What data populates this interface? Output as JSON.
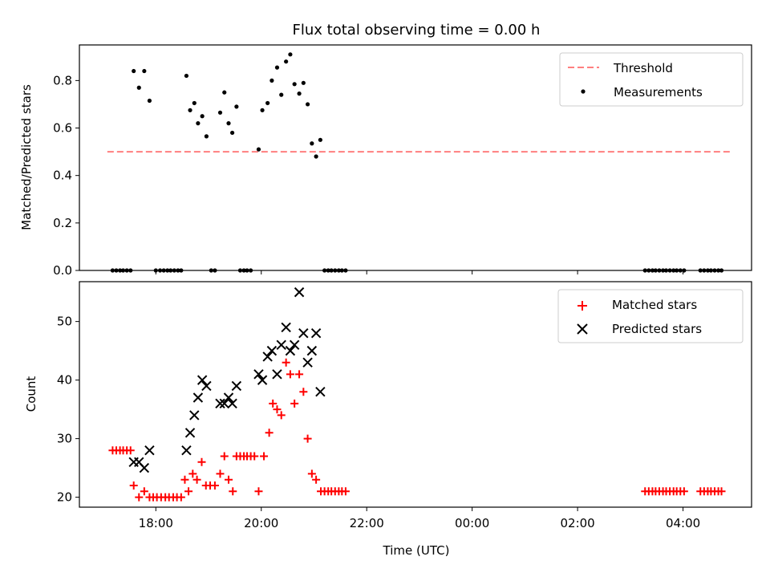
{
  "title": "Flux total observing time = 0.00 h",
  "xlabel": "Time (UTC)",
  "colors": {
    "threshold": "#ff7f7f",
    "measurements": "#000000",
    "matched": "#ff0000",
    "predicted": "#000000"
  },
  "chart_data": [
    {
      "type": "scatter",
      "panel": "top",
      "ylabel": "Matched/Predicted stars",
      "ylim": [
        0,
        0.95
      ],
      "yticks": [
        0.0,
        0.2,
        0.4,
        0.6,
        0.8
      ],
      "ytick_labels": [
        "0.0",
        "0.2",
        "0.4",
        "0.6",
        "0.8"
      ],
      "x_unit": "hours since 00:00 UTC on first day",
      "xlim": [
        16.55,
        29.3
      ],
      "xticks": [
        18,
        20,
        22,
        24,
        26,
        28
      ],
      "xtick_labels": [
        "",
        "",
        "",
        "",
        "",
        ""
      ],
      "legend_position": "upper right",
      "threshold": {
        "name": "Threshold",
        "value": 0.5,
        "x_start": 17.08,
        "x_end": 28.92,
        "style": "dashed"
      },
      "series": [
        {
          "name": "Measurements",
          "points": [
            [
              17.18,
              0.0
            ],
            [
              17.25,
              0.0
            ],
            [
              17.32,
              0.0
            ],
            [
              17.38,
              0.0
            ],
            [
              17.45,
              0.0
            ],
            [
              17.52,
              0.0
            ],
            [
              17.58,
              0.84
            ],
            [
              17.68,
              0.77
            ],
            [
              17.78,
              0.84
            ],
            [
              17.88,
              0.715
            ],
            [
              18.0,
              0.0
            ],
            [
              18.08,
              0.0
            ],
            [
              18.15,
              0.0
            ],
            [
              18.22,
              0.0
            ],
            [
              18.28,
              0.0
            ],
            [
              18.35,
              0.0
            ],
            [
              18.42,
              0.0
            ],
            [
              18.48,
              0.0
            ],
            [
              18.58,
              0.82
            ],
            [
              18.65,
              0.675
            ],
            [
              18.73,
              0.705
            ],
            [
              18.8,
              0.62
            ],
            [
              18.88,
              0.65
            ],
            [
              18.96,
              0.565
            ],
            [
              19.05,
              0.0
            ],
            [
              19.12,
              0.0
            ],
            [
              19.22,
              0.665
            ],
            [
              19.3,
              0.75
            ],
            [
              19.38,
              0.62
            ],
            [
              19.45,
              0.58
            ],
            [
              19.53,
              0.69
            ],
            [
              19.6,
              0.0
            ],
            [
              19.67,
              0.0
            ],
            [
              19.73,
              0.0
            ],
            [
              19.8,
              0.0
            ],
            [
              19.95,
              0.51
            ],
            [
              20.02,
              0.675
            ],
            [
              20.12,
              0.705
            ],
            [
              20.2,
              0.8
            ],
            [
              20.3,
              0.855
            ],
            [
              20.38,
              0.74
            ],
            [
              20.47,
              0.88
            ],
            [
              20.55,
              0.91
            ],
            [
              20.63,
              0.785
            ],
            [
              20.72,
              0.745
            ],
            [
              20.8,
              0.79
            ],
            [
              20.88,
              0.7
            ],
            [
              20.96,
              0.535
            ],
            [
              21.04,
              0.48
            ],
            [
              21.12,
              0.55
            ],
            [
              21.2,
              0.0
            ],
            [
              21.27,
              0.0
            ],
            [
              21.33,
              0.0
            ],
            [
              21.4,
              0.0
            ],
            [
              21.47,
              0.0
            ],
            [
              21.53,
              0.0
            ],
            [
              21.6,
              0.0
            ],
            [
              27.28,
              0.0
            ],
            [
              27.35,
              0.0
            ],
            [
              27.42,
              0.0
            ],
            [
              27.48,
              0.0
            ],
            [
              27.55,
              0.0
            ],
            [
              27.62,
              0.0
            ],
            [
              27.68,
              0.0
            ],
            [
              27.75,
              0.0
            ],
            [
              27.82,
              0.0
            ],
            [
              27.88,
              0.0
            ],
            [
              27.95,
              0.0
            ],
            [
              28.02,
              0.0
            ],
            [
              28.33,
              0.0
            ],
            [
              28.4,
              0.0
            ],
            [
              28.47,
              0.0
            ],
            [
              28.53,
              0.0
            ],
            [
              28.6,
              0.0
            ],
            [
              28.67,
              0.0
            ],
            [
              28.73,
              0.0
            ]
          ]
        }
      ]
    },
    {
      "type": "scatter",
      "panel": "bottom",
      "ylabel": "Count",
      "ylim": [
        18.3,
        56.8
      ],
      "yticks": [
        20,
        30,
        40,
        50
      ],
      "ytick_labels": [
        "20",
        "30",
        "40",
        "50"
      ],
      "x_unit": "hours since 00:00 UTC on first day",
      "xlim": [
        16.55,
        29.3
      ],
      "xticks": [
        18,
        20,
        22,
        24,
        26,
        28
      ],
      "xtick_labels": [
        "18:00",
        "20:00",
        "22:00",
        "00:00",
        "02:00",
        "04:00"
      ],
      "legend_position": "upper right",
      "series": [
        {
          "name": "Matched stars",
          "marker": "plus",
          "points": [
            [
              17.18,
              28
            ],
            [
              17.25,
              28
            ],
            [
              17.32,
              28
            ],
            [
              17.38,
              28
            ],
            [
              17.45,
              28
            ],
            [
              17.52,
              28
            ],
            [
              17.58,
              22
            ],
            [
              17.68,
              20
            ],
            [
              17.78,
              21
            ],
            [
              17.88,
              20
            ],
            [
              17.95,
              20
            ],
            [
              18.02,
              20
            ],
            [
              18.1,
              20
            ],
            [
              18.18,
              20
            ],
            [
              18.25,
              20
            ],
            [
              18.33,
              20
            ],
            [
              18.4,
              20
            ],
            [
              18.48,
              20
            ],
            [
              18.55,
              23
            ],
            [
              18.62,
              21
            ],
            [
              18.7,
              24
            ],
            [
              18.78,
              23
            ],
            [
              18.87,
              26
            ],
            [
              18.95,
              22
            ],
            [
              19.03,
              22
            ],
            [
              19.12,
              22
            ],
            [
              19.22,
              24
            ],
            [
              19.3,
              27
            ],
            [
              19.38,
              23
            ],
            [
              19.46,
              21
            ],
            [
              19.53,
              27
            ],
            [
              19.6,
              27
            ],
            [
              19.67,
              27
            ],
            [
              19.73,
              27
            ],
            [
              19.8,
              27
            ],
            [
              19.87,
              27
            ],
            [
              19.95,
              21
            ],
            [
              20.05,
              27
            ],
            [
              20.15,
              31
            ],
            [
              20.22,
              36
            ],
            [
              20.3,
              35
            ],
            [
              20.38,
              34
            ],
            [
              20.47,
              43
            ],
            [
              20.55,
              41
            ],
            [
              20.63,
              36
            ],
            [
              20.72,
              41
            ],
            [
              20.8,
              38
            ],
            [
              20.88,
              30
            ],
            [
              20.96,
              24
            ],
            [
              21.04,
              23
            ],
            [
              21.13,
              21
            ],
            [
              21.2,
              21
            ],
            [
              21.27,
              21
            ],
            [
              21.33,
              21
            ],
            [
              21.4,
              21
            ],
            [
              21.47,
              21
            ],
            [
              21.53,
              21
            ],
            [
              21.6,
              21
            ],
            [
              27.28,
              21
            ],
            [
              27.35,
              21
            ],
            [
              27.42,
              21
            ],
            [
              27.48,
              21
            ],
            [
              27.55,
              21
            ],
            [
              27.62,
              21
            ],
            [
              27.68,
              21
            ],
            [
              27.75,
              21
            ],
            [
              27.82,
              21
            ],
            [
              27.88,
              21
            ],
            [
              27.95,
              21
            ],
            [
              28.02,
              21
            ],
            [
              28.33,
              21
            ],
            [
              28.4,
              21
            ],
            [
              28.47,
              21
            ],
            [
              28.53,
              21
            ],
            [
              28.6,
              21
            ],
            [
              28.67,
              21
            ],
            [
              28.73,
              21
            ]
          ]
        },
        {
          "name": "Predicted stars",
          "marker": "x",
          "points": [
            [
              17.58,
              26
            ],
            [
              17.68,
              26
            ],
            [
              17.78,
              25
            ],
            [
              17.88,
              28
            ],
            [
              18.58,
              28
            ],
            [
              18.65,
              31
            ],
            [
              18.73,
              34
            ],
            [
              18.8,
              37
            ],
            [
              18.88,
              40
            ],
            [
              18.96,
              39
            ],
            [
              19.22,
              36
            ],
            [
              19.3,
              36
            ],
            [
              19.38,
              37
            ],
            [
              19.45,
              36
            ],
            [
              19.53,
              39
            ],
            [
              19.95,
              41
            ],
            [
              20.02,
              40
            ],
            [
              20.12,
              44
            ],
            [
              20.2,
              45
            ],
            [
              20.3,
              41
            ],
            [
              20.38,
              46
            ],
            [
              20.47,
              49
            ],
            [
              20.55,
              45
            ],
            [
              20.63,
              46
            ],
            [
              20.72,
              55
            ],
            [
              20.8,
              48
            ],
            [
              20.88,
              43
            ],
            [
              20.96,
              45
            ],
            [
              21.04,
              48
            ],
            [
              21.12,
              38
            ]
          ]
        }
      ]
    }
  ]
}
